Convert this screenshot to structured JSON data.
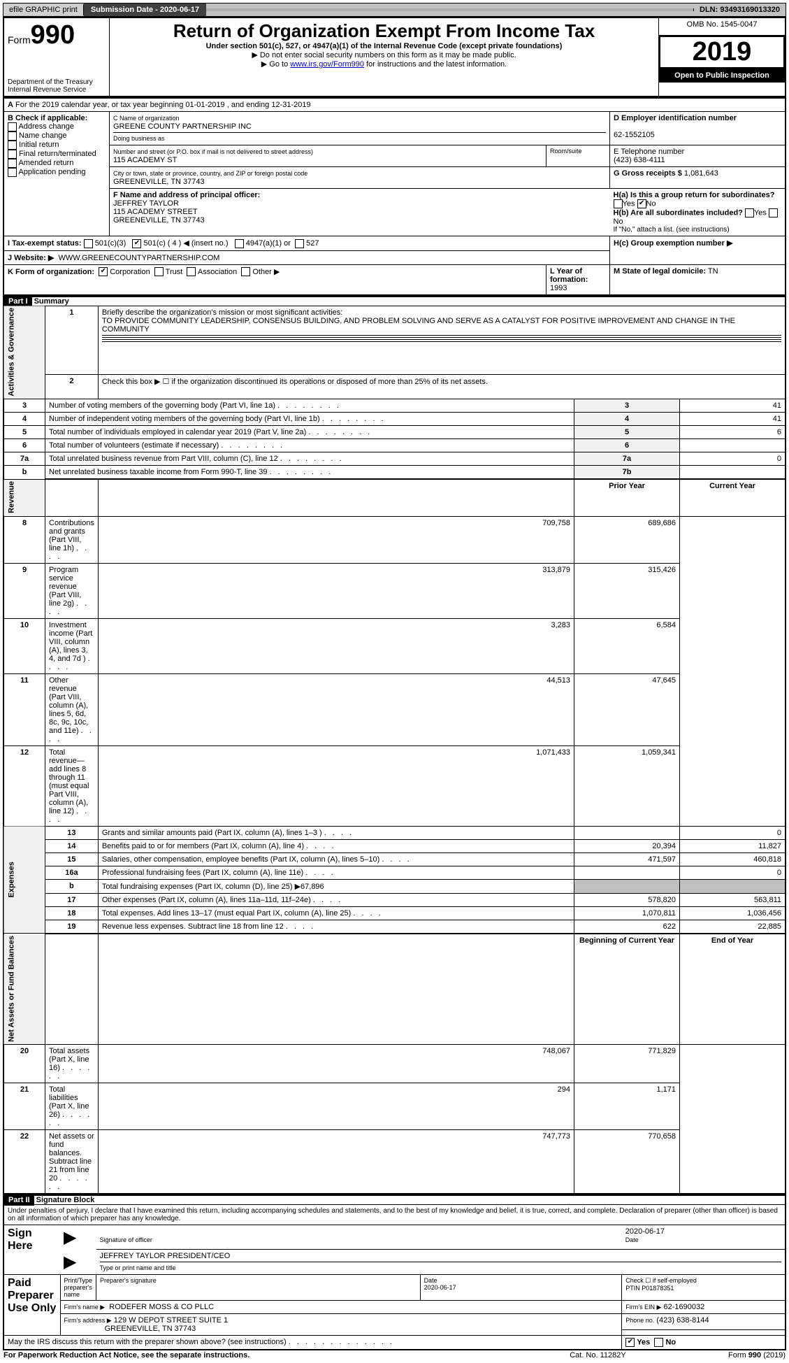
{
  "topbar": {
    "efile": "efile GRAPHIC print",
    "sub_label": "Submission Date - 2020-06-17",
    "dln": "DLN: 93493169013320"
  },
  "header": {
    "form_prefix": "Form",
    "form_number": "990",
    "title": "Return of Organization Exempt From Income Tax",
    "subtitle": "Under section 501(c), 527, or 4947(a)(1) of the Internal Revenue Code (except private foundations)",
    "note1": "▶ Do not enter social security numbers on this form as it may be made public.",
    "note2_prefix": "▶ Go to ",
    "note2_link": "www.irs.gov/Form990",
    "note2_suffix": " for instructions and the latest information.",
    "omb": "OMB No. 1545-0047",
    "year": "2019",
    "open_box": "Open to Public Inspection",
    "dept": "Department of the Treasury\nInternal Revenue Service"
  },
  "lineA": "For the 2019 calendar year, or tax year beginning 01-01-2019   , and ending 12-31-2019",
  "sectionB": {
    "label": "B Check if applicable:",
    "opts": [
      "Address change",
      "Name change",
      "Initial return",
      "Final return/terminated",
      "Amended return",
      "Application pending"
    ]
  },
  "sectionC": {
    "label": "C Name of organization",
    "org": "GREENE COUNTY PARTNERSHIP INC",
    "dba_label": "Doing business as",
    "addr_label": "Number and street (or P.O. box if mail is not delivered to street address)",
    "room_label": "Room/suite",
    "addr": "115 ACADEMY ST",
    "city_label": "City or town, state or province, country, and ZIP or foreign postal code",
    "city": "GREENEVILLE, TN  37743"
  },
  "sectionD": {
    "label": "D Employer identification number",
    "ein": "62-1552105"
  },
  "sectionE": {
    "label": "E Telephone number",
    "phone": "(423) 638-4111"
  },
  "sectionG": {
    "label": "G Gross receipts $",
    "val": "1,081,643"
  },
  "sectionF": {
    "label": "F Name and address of principal officer:",
    "name": "JEFFREY TAYLOR",
    "addr1": "115 ACADEMY STREET",
    "addr2": "GREENEVILLE, TN  37743"
  },
  "sectionH": {
    "a": "H(a) Is this a group return for subordinates?",
    "b": "H(b) Are all subordinates included?",
    "b_note": "If \"No,\" attach a list. (see instructions)",
    "c": "H(c) Group exemption number ▶",
    "yes": "Yes",
    "no": "No"
  },
  "sectionI": {
    "label": "I Tax-exempt status:",
    "opt501c3": "501(c)(3)",
    "opt501c": "501(c) ( 4 ) ◀ (insert no.)",
    "opt4947": "4947(a)(1) or",
    "opt527": "527"
  },
  "sectionJ": {
    "label": "J   Website: ▶",
    "url": "WWW.GREENECOUNTYPARTNERSHIP.COM"
  },
  "sectionK": {
    "label": "K Form of organization:",
    "opts": [
      "Corporation",
      "Trust",
      "Association",
      "Other ▶"
    ]
  },
  "sectionL": {
    "label": "L Year of formation:",
    "val": "1993"
  },
  "sectionM": {
    "label": "M State of legal domicile:",
    "val": "TN"
  },
  "part1": {
    "header": "Part I",
    "title": "Summary",
    "q1": "Briefly describe the organization's mission or most significant activities:",
    "mission": "TO PROVIDE COMMUNITY LEADERSHIP, CONSENSUS BUILDING, AND PROBLEM SOLVING AND SERVE AS A CATALYST FOR POSITIVE IMPROVEMENT AND CHANGE IN THE COMMUNITY",
    "q2": "Check this box ▶ ☐ if the organization discontinued its operations or disposed of more than 25% of its net assets.",
    "side_labels": {
      "gov": "Activities & Governance",
      "rev": "Revenue",
      "exp": "Expenses",
      "net": "Net Assets or Fund Balances"
    },
    "col_prior": "Prior Year",
    "col_current": "Current Year",
    "col_begin": "Beginning of Current Year",
    "col_end": "End of Year",
    "gov_rows": [
      {
        "n": "3",
        "t": "Number of voting members of the governing body (Part VI, line 1a)",
        "box": "3",
        "v": "41"
      },
      {
        "n": "4",
        "t": "Number of independent voting members of the governing body (Part VI, line 1b)",
        "box": "4",
        "v": "41"
      },
      {
        "n": "5",
        "t": "Total number of individuals employed in calendar year 2019 (Part V, line 2a)",
        "box": "5",
        "v": "6"
      },
      {
        "n": "6",
        "t": "Total number of volunteers (estimate if necessary)",
        "box": "6",
        "v": ""
      },
      {
        "n": "7a",
        "t": "Total unrelated business revenue from Part VIII, column (C), line 12",
        "box": "7a",
        "v": "0"
      },
      {
        "n": "b",
        "t": "Net unrelated business taxable income from Form 990-T, line 39",
        "box": "7b",
        "v": ""
      }
    ],
    "rev_rows": [
      {
        "n": "8",
        "t": "Contributions and grants (Part VIII, line 1h)",
        "p": "709,758",
        "c": "689,686"
      },
      {
        "n": "9",
        "t": "Program service revenue (Part VIII, line 2g)",
        "p": "313,879",
        "c": "315,426"
      },
      {
        "n": "10",
        "t": "Investment income (Part VIII, column (A), lines 3, 4, and 7d )",
        "p": "3,283",
        "c": "6,584"
      },
      {
        "n": "11",
        "t": "Other revenue (Part VIII, column (A), lines 5, 6d, 8c, 9c, 10c, and 11e)",
        "p": "44,513",
        "c": "47,645"
      },
      {
        "n": "12",
        "t": "Total revenue—add lines 8 through 11 (must equal Part VIII, column (A), line 12)",
        "p": "1,071,433",
        "c": "1,059,341"
      }
    ],
    "exp_rows": [
      {
        "n": "13",
        "t": "Grants and similar amounts paid (Part IX, column (A), lines 1–3 )",
        "p": "",
        "c": "0"
      },
      {
        "n": "14",
        "t": "Benefits paid to or for members (Part IX, column (A), line 4)",
        "p": "20,394",
        "c": "11,827"
      },
      {
        "n": "15",
        "t": "Salaries, other compensation, employee benefits (Part IX, column (A), lines 5–10)",
        "p": "471,597",
        "c": "460,818"
      },
      {
        "n": "16a",
        "t": "Professional fundraising fees (Part IX, column (A), line 11e)",
        "p": "",
        "c": "0"
      },
      {
        "n": "b",
        "t": "Total fundraising expenses (Part IX, column (D), line 25) ▶67,896",
        "p": "GREY",
        "c": "GREY"
      },
      {
        "n": "17",
        "t": "Other expenses (Part IX, column (A), lines 11a–11d, 11f–24e)",
        "p": "578,820",
        "c": "563,811"
      },
      {
        "n": "18",
        "t": "Total expenses. Add lines 13–17 (must equal Part IX, column (A), line 25)",
        "p": "1,070,811",
        "c": "1,036,456"
      },
      {
        "n": "19",
        "t": "Revenue less expenses. Subtract line 18 from line 12",
        "p": "622",
        "c": "22,885"
      }
    ],
    "net_rows": [
      {
        "n": "20",
        "t": "Total assets (Part X, line 16)",
        "p": "748,067",
        "c": "771,829"
      },
      {
        "n": "21",
        "t": "Total liabilities (Part X, line 26)",
        "p": "294",
        "c": "1,171"
      },
      {
        "n": "22",
        "t": "Net assets or fund balances. Subtract line 21 from line 20",
        "p": "747,773",
        "c": "770,658"
      }
    ]
  },
  "part2": {
    "header": "Part II",
    "title": "Signature Block",
    "decl": "Under penalties of perjury, I declare that I have examined this return, including accompanying schedules and statements, and to the best of my knowledge and belief, it is true, correct, and complete. Declaration of preparer (other than officer) is based on all information of which preparer has any knowledge.",
    "sign_here": "Sign Here",
    "sig_officer": "Signature of officer",
    "sig_date": "2020-06-17",
    "date_label": "Date",
    "officer_typed": "JEFFREY TAYLOR  PRESIDENT/CEO",
    "typed_label": "Type or print name and title",
    "paid": "Paid Preparer Use Only",
    "prep_name_label": "Print/Type preparer's name",
    "prep_sig_label": "Preparer's signature",
    "prep_date": "2020-06-17",
    "check_self": "Check ☐ if self-employed",
    "ptin_label": "PTIN",
    "ptin": "P01878351",
    "firm_name_label": "Firm's name    ▶",
    "firm_name": "RODEFER MOSS & CO PLLC",
    "firm_ein_label": "Firm's EIN ▶",
    "firm_ein": "62-1690032",
    "firm_addr_label": "Firm's address ▶",
    "firm_addr1": "129 W DEPOT STREET SUITE 1",
    "firm_addr2": "GREENEVILLE, TN  37743",
    "firm_phone_label": "Phone no.",
    "firm_phone": "(423) 638-8144",
    "discuss": "May the IRS discuss this return with the preparer shown above? (see instructions)",
    "paperwork": "For Paperwork Reduction Act Notice, see the separate instructions.",
    "cat": "Cat. No. 11282Y",
    "form_footer": "Form 990 (2019)"
  }
}
